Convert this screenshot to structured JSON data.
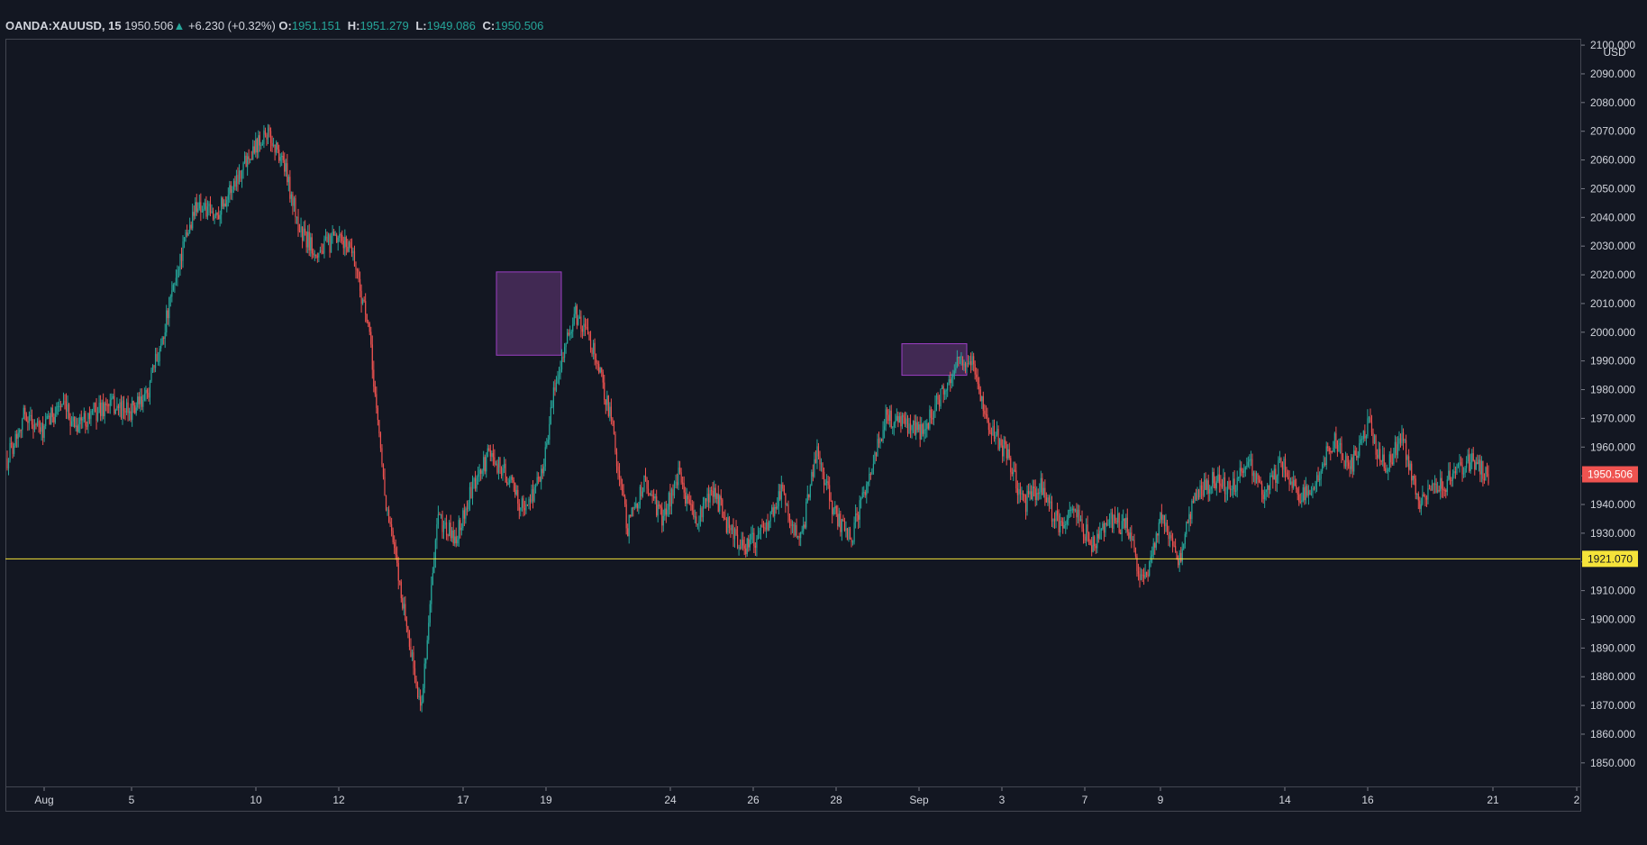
{
  "legend": {
    "symbol": "OANDA:XAUUSD, 15",
    "last": "1950.506",
    "arrow": "▲",
    "change": "+6.230 (+0.32%)",
    "o_label": "O:",
    "o_value": "1951.151",
    "h_label": "H:",
    "h_value": "1951.279",
    "l_label": "L:",
    "l_value": "1949.086",
    "c_label": "C:",
    "c_value": "1950.506"
  },
  "colors": {
    "background": "#131722",
    "up": "#26a69a",
    "down": "#ef5350",
    "horizontal_line": "#f5e33a",
    "box_fill": "#4a2d5c",
    "box_border": "#9c3fc4"
  },
  "chart_data": {
    "type": "candlestick",
    "symbol": "OANDA:XAUUSD",
    "interval": "15",
    "currency": "USD",
    "ylim": [
      1840,
      2100
    ],
    "y_ticks": [
      1850,
      1860,
      1870,
      1880,
      1890,
      1900,
      1910,
      1920,
      1930,
      1940,
      1950,
      1960,
      1970,
      1980,
      1990,
      2000,
      2010,
      2020,
      2030,
      2040,
      2050,
      2060,
      2070,
      2080,
      2090,
      2100
    ],
    "x_ticks": [
      "Aug",
      "5",
      "10",
      "12",
      "17",
      "19",
      "24",
      "26",
      "28",
      "Sep",
      "3",
      "7",
      "9",
      "14",
      "16",
      "21",
      "2"
    ],
    "price_path": [
      [
        0,
        1956
      ],
      [
        1,
        1972
      ],
      [
        2,
        1965
      ],
      [
        3,
        1975
      ],
      [
        4,
        1968
      ],
      [
        5,
        1972
      ],
      [
        6,
        1975
      ],
      [
        7,
        1972
      ],
      [
        8,
        1976
      ],
      [
        9,
        1998
      ],
      [
        10,
        2025
      ],
      [
        11,
        2045
      ],
      [
        12,
        2040
      ],
      [
        13,
        2050
      ],
      [
        14,
        2062
      ],
      [
        15,
        2070
      ],
      [
        16,
        2060
      ],
      [
        17,
        2035
      ],
      [
        18,
        2028
      ],
      [
        19,
        2032
      ],
      [
        20,
        2030
      ],
      [
        21,
        2000
      ],
      [
        22,
        1940
      ],
      [
        23,
        1905
      ],
      [
        24,
        1868
      ],
      [
        25,
        1935
      ],
      [
        26,
        1928
      ],
      [
        27,
        1945
      ],
      [
        28,
        1958
      ],
      [
        29,
        1950
      ],
      [
        30,
        1938
      ],
      [
        31,
        1950
      ],
      [
        32,
        1988
      ],
      [
        33,
        2006
      ],
      [
        34,
        1995
      ],
      [
        35,
        1972
      ],
      [
        36,
        1932
      ],
      [
        37,
        1948
      ],
      [
        38,
        1935
      ],
      [
        39,
        1950
      ],
      [
        40,
        1933
      ],
      [
        41,
        1945
      ],
      [
        42,
        1930
      ],
      [
        43,
        1925
      ],
      [
        44,
        1932
      ],
      [
        45,
        1946
      ],
      [
        46,
        1925
      ],
      [
        47,
        1958
      ],
      [
        48,
        1937
      ],
      [
        49,
        1928
      ],
      [
        50,
        1950
      ],
      [
        51,
        1970
      ],
      [
        52,
        1968
      ],
      [
        53,
        1965
      ],
      [
        54,
        1975
      ],
      [
        55,
        1988
      ],
      [
        56,
        1990
      ],
      [
        57,
        1968
      ],
      [
        58,
        1958
      ],
      [
        59,
        1940
      ],
      [
        60,
        1946
      ],
      [
        61,
        1933
      ],
      [
        62,
        1938
      ],
      [
        63,
        1925
      ],
      [
        64,
        1935
      ],
      [
        65,
        1932
      ],
      [
        66,
        1912
      ],
      [
        67,
        1935
      ],
      [
        68,
        1920
      ],
      [
        69,
        1943
      ],
      [
        70,
        1948
      ],
      [
        71,
        1945
      ],
      [
        72,
        1955
      ],
      [
        73,
        1943
      ],
      [
        74,
        1955
      ],
      [
        75,
        1941
      ],
      [
        76,
        1950
      ],
      [
        77,
        1962
      ],
      [
        78,
        1953
      ],
      [
        79,
        1968
      ],
      [
        80,
        1952
      ],
      [
        81,
        1964
      ],
      [
        82,
        1940
      ],
      [
        83,
        1945
      ],
      [
        84,
        1950
      ],
      [
        85,
        1955
      ],
      [
        86,
        1950
      ]
    ],
    "horizontal_line": {
      "price": 1921.07,
      "label": "1921.070"
    },
    "last_price": {
      "price": 1950.506,
      "label": "1950.506"
    },
    "boxes": [
      {
        "from": 1992,
        "to": 2021,
        "x_from": "18",
        "x_to": "19"
      },
      {
        "from": 1985,
        "to": 1996,
        "x_from": "Sep",
        "x_to": "2"
      }
    ]
  }
}
